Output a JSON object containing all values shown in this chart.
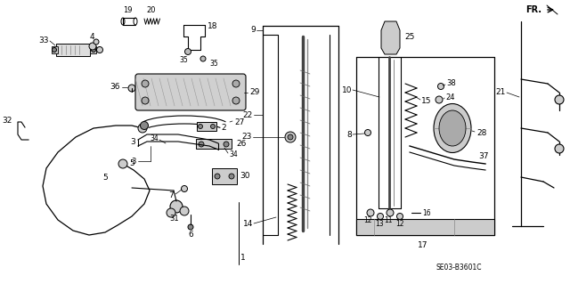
{
  "bg_color": "#ffffff",
  "line_color": "#000000",
  "fig_width": 6.4,
  "fig_height": 3.19,
  "watermark": "SE03-B3601C",
  "fr_label": "FR."
}
